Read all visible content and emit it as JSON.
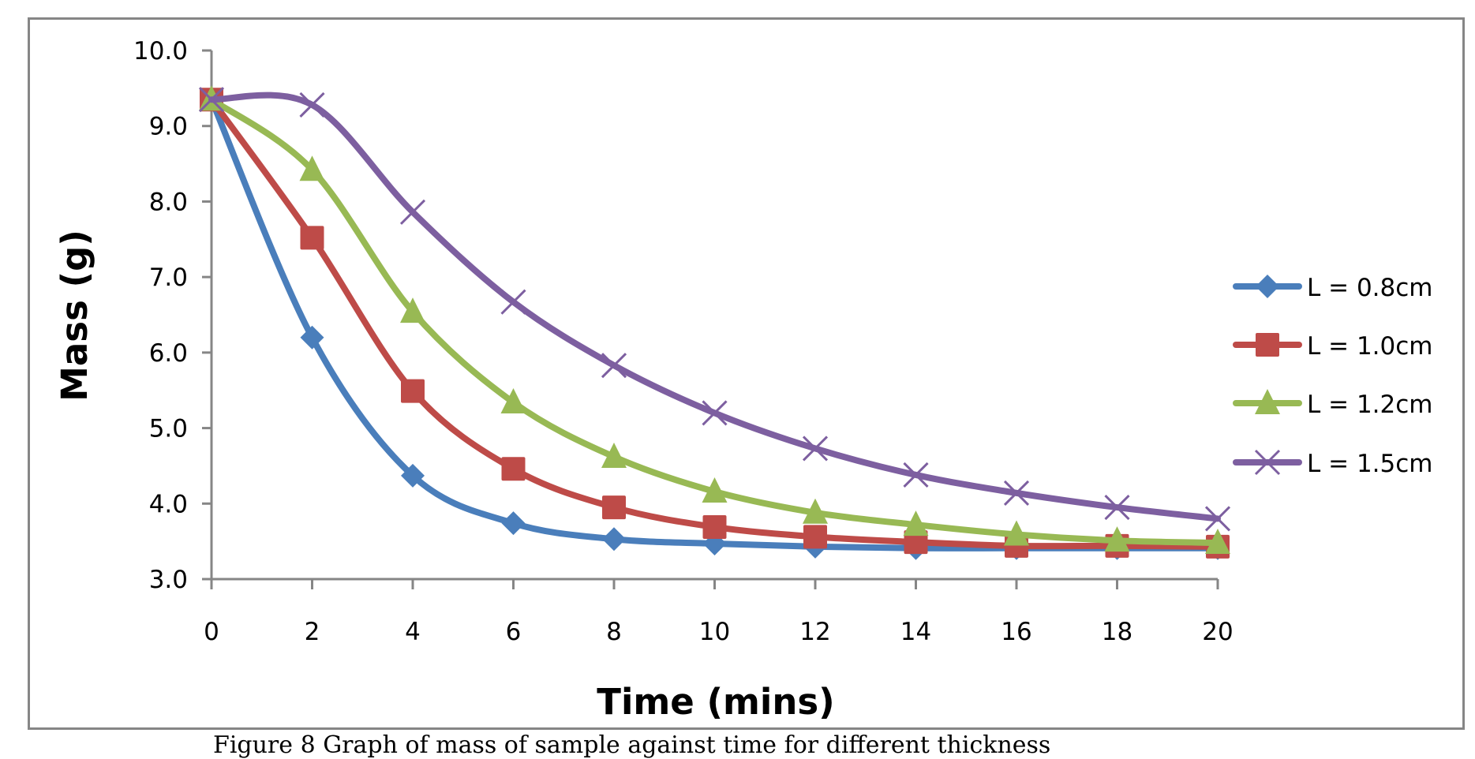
{
  "caption": "Figure 8          Graph of mass of sample against time for different thickness",
  "chart_data": {
    "type": "line",
    "title": "",
    "xlabel": "Time (mins)",
    "ylabel": "Mass (g)",
    "x": [
      0,
      2,
      4,
      6,
      8,
      10,
      12,
      14,
      16,
      18,
      20
    ],
    "xlim": [
      0,
      20
    ],
    "ylim": [
      3.0,
      10.0
    ],
    "xticks": [
      "0",
      "2",
      "4",
      "6",
      "8",
      "10",
      "12",
      "14",
      "16",
      "18",
      "20"
    ],
    "yticks": [
      "3.0",
      "4.0",
      "5.0",
      "6.0",
      "7.0",
      "8.0",
      "9.0",
      "10.0"
    ],
    "grid": false,
    "smooth": true,
    "legend_position": "right",
    "series": [
      {
        "name": "L = 0.8cm",
        "color": "#4a7ebb",
        "marker": "diamond",
        "values": [
          9.35,
          6.2,
          4.37,
          3.74,
          3.53,
          3.47,
          3.43,
          3.41,
          3.41,
          3.41,
          3.41
        ]
      },
      {
        "name": "L = 1.0cm",
        "color": "#be4b48",
        "marker": "square",
        "values": [
          9.35,
          7.52,
          5.49,
          4.46,
          3.95,
          3.69,
          3.56,
          3.49,
          3.44,
          3.44,
          3.43
        ]
      },
      {
        "name": "L = 1.2cm",
        "color": "#98b954",
        "marker": "triangle",
        "values": [
          9.35,
          8.42,
          6.54,
          5.34,
          4.62,
          4.16,
          3.88,
          3.72,
          3.59,
          3.51,
          3.48
        ]
      },
      {
        "name": "L = 1.5cm",
        "color": "#7d5fa0",
        "marker": "x",
        "values": [
          9.35,
          9.28,
          7.86,
          6.67,
          5.83,
          5.2,
          4.73,
          4.38,
          4.14,
          3.95,
          3.8
        ]
      }
    ]
  }
}
